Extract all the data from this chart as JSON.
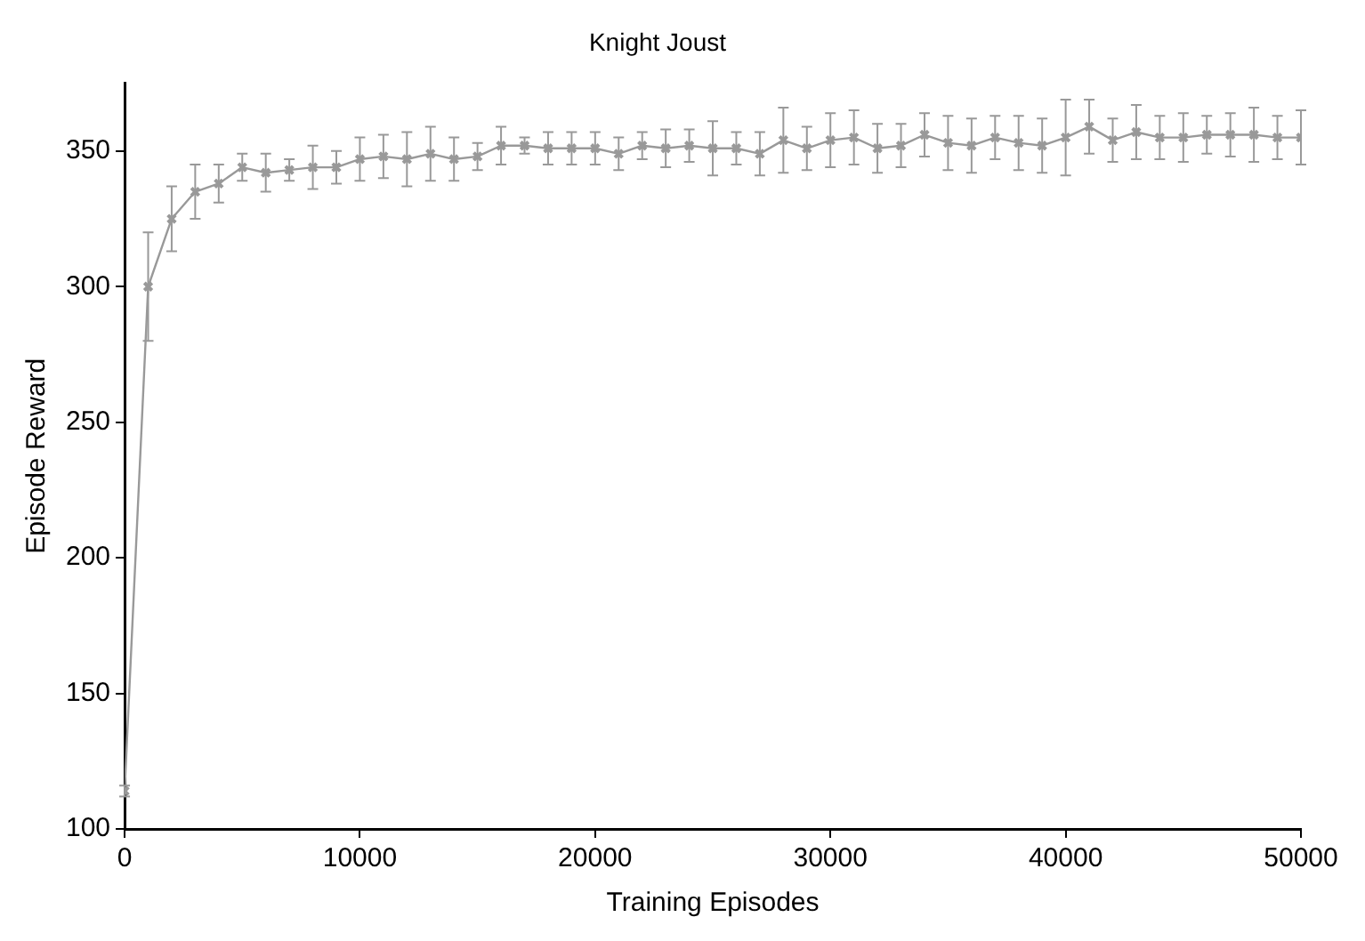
{
  "chart_data": {
    "type": "line",
    "title": "Knight Joust",
    "xlabel": "Training Episodes",
    "ylabel": "Episode Reward",
    "x": [
      0,
      1000,
      2000,
      3000,
      4000,
      5000,
      6000,
      7000,
      8000,
      9000,
      10000,
      11000,
      12000,
      13000,
      14000,
      15000,
      16000,
      17000,
      18000,
      19000,
      20000,
      21000,
      22000,
      23000,
      24000,
      25000,
      26000,
      27000,
      28000,
      29000,
      30000,
      31000,
      32000,
      33000,
      34000,
      35000,
      36000,
      37000,
      38000,
      39000,
      40000,
      41000,
      42000,
      43000,
      44000,
      45000,
      46000,
      47000,
      48000,
      49000,
      50000
    ],
    "series": [
      {
        "color": "#999999",
        "values": [
          114,
          300,
          325,
          335,
          338,
          344,
          342,
          343,
          344,
          344,
          347,
          348,
          347,
          349,
          347,
          348,
          352,
          352,
          351,
          351,
          351,
          349,
          352,
          351,
          352,
          351,
          351,
          349,
          354,
          351,
          354,
          355,
          351,
          352,
          356,
          353,
          352,
          355,
          353,
          352,
          355,
          359,
          354,
          357,
          355,
          355,
          356,
          356,
          356,
          355,
          355
        ],
        "errors": [
          2,
          20,
          12,
          10,
          7,
          5,
          7,
          4,
          8,
          6,
          8,
          8,
          10,
          10,
          8,
          5,
          7,
          3,
          6,
          6,
          6,
          6,
          5,
          7,
          6,
          10,
          6,
          8,
          12,
          8,
          10,
          10,
          9,
          8,
          8,
          10,
          10,
          8,
          10,
          10,
          14,
          10,
          8,
          10,
          8,
          9,
          7,
          8,
          10,
          8,
          10
        ]
      }
    ],
    "xlim": [
      0,
      50000
    ],
    "xticks": [
      0,
      10000,
      20000,
      30000,
      40000,
      50000
    ],
    "ylim": [
      100,
      375
    ],
    "yticks": [
      100,
      150,
      200,
      250,
      300,
      350
    ],
    "grid": false,
    "legend": false,
    "marker": "cross",
    "line_style": "solid"
  }
}
